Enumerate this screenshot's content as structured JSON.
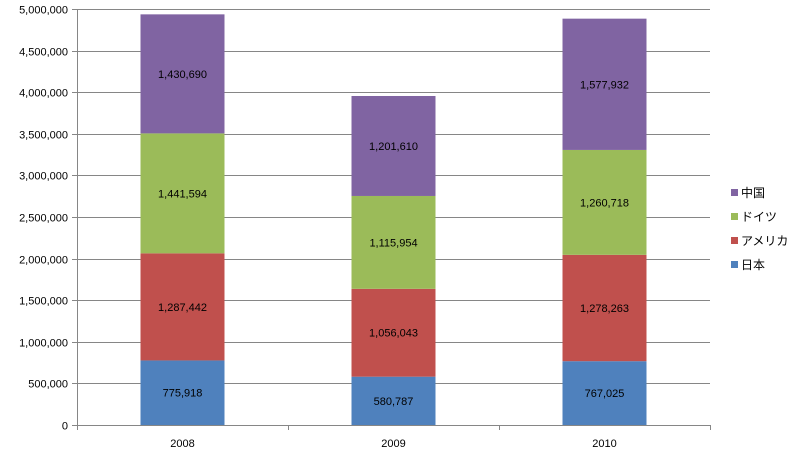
{
  "chart_data": {
    "type": "bar",
    "stacked": true,
    "categories": [
      "2008",
      "2009",
      "2010"
    ],
    "series": [
      {
        "name": "日本",
        "color": "#4f81bd",
        "values": [
          775918,
          580787,
          767025
        ],
        "labels": [
          "775,918",
          "580,787",
          "767,025"
        ]
      },
      {
        "name": "アメリカ",
        "color": "#c0504d",
        "values": [
          1287442,
          1056043,
          1278263
        ],
        "labels": [
          "1,287,442",
          "1,056,043",
          "1,278,263"
        ]
      },
      {
        "name": "ドイツ",
        "color": "#9bbb59",
        "values": [
          1441594,
          1115954,
          1260718
        ],
        "labels": [
          "1,441,594",
          "1,115,954",
          "1,260,718"
        ]
      },
      {
        "name": "中国",
        "color": "#8064a2",
        "values": [
          1430690,
          1201610,
          1577932
        ],
        "labels": [
          "1,430,690",
          "1,201,610",
          "1,577,932"
        ]
      }
    ],
    "ylim": [
      0,
      5000000
    ],
    "yticks": [
      0,
      500000,
      1000000,
      1500000,
      2000000,
      2500000,
      3000000,
      3500000,
      4000000,
      4500000,
      5000000
    ],
    "ytick_labels": [
      "0",
      "500,000",
      "1,000,000",
      "1,500,000",
      "2,000,000",
      "2,500,000",
      "3,000,000",
      "3,500,000",
      "4,000,000",
      "4,500,000",
      "5,000,000"
    ],
    "grid": true,
    "legend_position": "right",
    "legend_order": [
      "中国",
      "ドイツ",
      "アメリカ",
      "日本"
    ],
    "title": "",
    "xlabel": "",
    "ylabel": ""
  }
}
